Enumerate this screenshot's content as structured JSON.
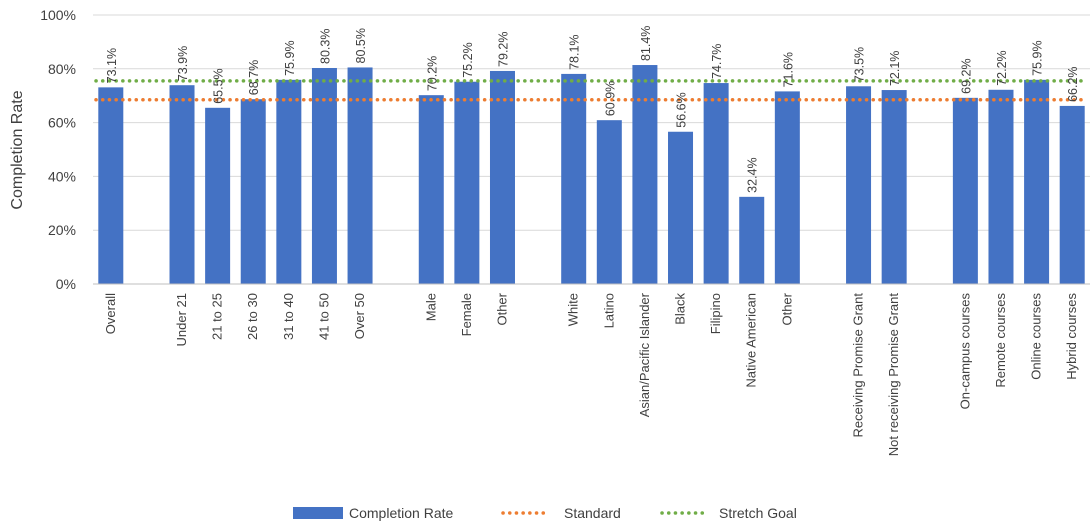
{
  "chart_data": {
    "type": "bar",
    "ylabel": "Completion Rate",
    "ylim": [
      0,
      100
    ],
    "y_ticks": [
      "0%",
      "20%",
      "40%",
      "60%",
      "80%",
      "100%"
    ],
    "y_tick_values": [
      0,
      20,
      40,
      60,
      80,
      100
    ],
    "grid": true,
    "legend_position": "bottom",
    "categories": [
      "Overall",
      "",
      "Under 21",
      "21 to 25",
      "26 to 30",
      "31 to 40",
      "41 to 50",
      "Over 50",
      "",
      "Male",
      "Female",
      "Other",
      "",
      "White",
      "Latino",
      "Asian/Pacific Islander",
      "Black",
      "Filipino",
      "Native American",
      "Other",
      "",
      "Receiving Promise Grant",
      "Not receiving Promise Grant",
      "",
      "On-campus courses",
      "Remote courses",
      "Online courses",
      "Hybrid courses"
    ],
    "series": [
      {
        "name": "Completion Rate",
        "type": "bar",
        "color": "#4472C4",
        "values": [
          73.1,
          null,
          73.9,
          65.5,
          68.7,
          75.9,
          80.3,
          80.5,
          null,
          70.2,
          75.2,
          79.2,
          null,
          78.1,
          60.9,
          81.4,
          56.6,
          74.7,
          32.4,
          71.6,
          null,
          73.5,
          72.1,
          null,
          69.2,
          72.2,
          75.9,
          66.2
        ],
        "labels": [
          "73.1%",
          "",
          "73.9%",
          "65.5%",
          "68.7%",
          "75.9%",
          "80.3%",
          "80.5%",
          "",
          "70.2%",
          "75.2%",
          "79.2%",
          "",
          "78.1%",
          "60.9%",
          "81.4%",
          "56.6%",
          "74.7%",
          "32.4%",
          "71.6%",
          "",
          "73.5%",
          "72.1%",
          "",
          "69.2%",
          "72.2%",
          "75.9%",
          "66.2%"
        ]
      },
      {
        "name": "Standard",
        "type": "line",
        "style": "dotted",
        "color": "#ED7D31",
        "value": 68.5
      },
      {
        "name": "Stretch Goal",
        "type": "line",
        "style": "dotted",
        "color": "#70AD47",
        "value": 75.5
      }
    ]
  }
}
